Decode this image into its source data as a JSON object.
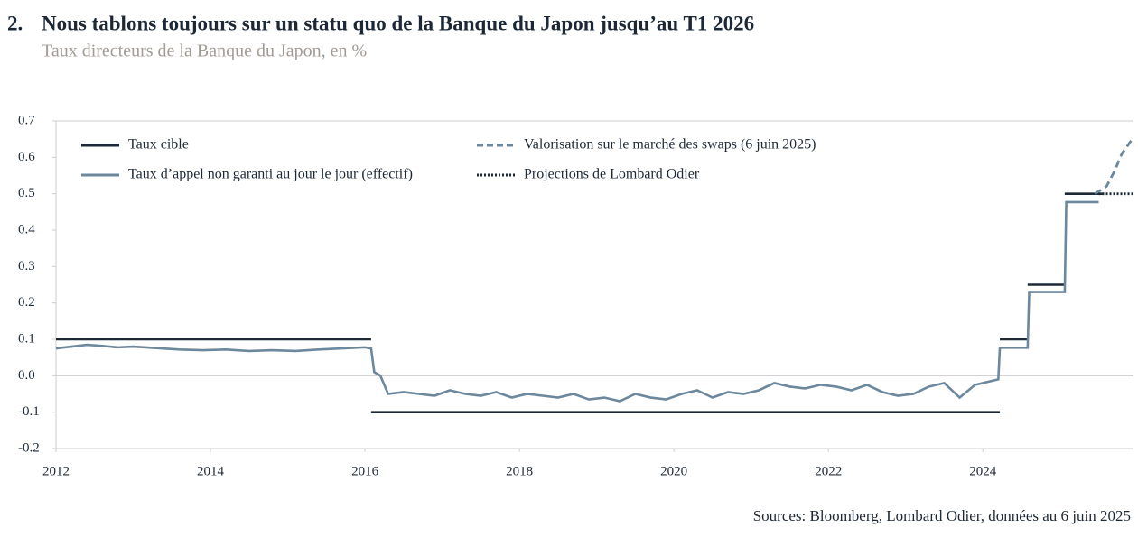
{
  "chart_data": {
    "type": "line",
    "number": "2.",
    "title": "Nous tablons toujours sur un statu quo de la Banque du Japon jusqu’au T1 2026",
    "subtitle": "Taux directeurs de la Banque du Japon, en %",
    "source": "Sources: Bloomberg, Lombard Odier, données au 6 juin 2025",
    "xlim": [
      2012,
      2025.95
    ],
    "xticks": [
      2012,
      2014,
      2016,
      2018,
      2020,
      2022,
      2024
    ],
    "ylim": [
      -0.2,
      0.7
    ],
    "yticks": [
      -0.2,
      -0.1,
      {
        "value": 0,
        "label": "0.0"
      },
      0.1,
      0.2,
      0.3,
      0.4,
      0.5,
      0.6,
      0.7
    ],
    "series": [
      {
        "name": "Taux cible",
        "color": "#1c2836",
        "style": "solid",
        "x": [
          2012,
          2016.08,
          2016.08,
          2016.08,
          2024.22,
          2024.22,
          2024.22,
          2024.58,
          2024.58,
          2024.58,
          2025.06,
          2025.06,
          2025.06,
          2025.55
        ],
        "values": [
          0.1,
          0.1,
          null,
          -0.1,
          -0.1,
          null,
          0.1,
          0.1,
          null,
          0.25,
          0.25,
          null,
          0.5,
          0.5
        ]
      },
      {
        "name": "Taux d’appel non garanti au jour le jour (effectif)",
        "color": "#6b889c",
        "style": "solid",
        "x": [
          2012,
          2012.2,
          2012.4,
          2012.6,
          2012.8,
          2013,
          2013.3,
          2013.6,
          2013.9,
          2014.2,
          2014.5,
          2014.8,
          2015.1,
          2015.4,
          2015.7,
          2016.0,
          2016.08,
          2016.12,
          2016.2,
          2016.3,
          2016.5,
          2016.7,
          2016.9,
          2017.1,
          2017.3,
          2017.5,
          2017.7,
          2017.9,
          2018.1,
          2018.3,
          2018.5,
          2018.7,
          2018.9,
          2019.1,
          2019.3,
          2019.5,
          2019.7,
          2019.9,
          2020.1,
          2020.3,
          2020.5,
          2020.7,
          2020.9,
          2021.1,
          2021.3,
          2021.5,
          2021.7,
          2021.9,
          2022.1,
          2022.3,
          2022.5,
          2022.7,
          2022.9,
          2023.1,
          2023.3,
          2023.5,
          2023.7,
          2023.9,
          2024.1,
          2024.2,
          2024.22,
          2024.58,
          2024.6,
          2025.06,
          2025.08,
          2025.5
        ],
        "values": [
          0.075,
          0.08,
          0.085,
          0.082,
          0.078,
          0.08,
          0.076,
          0.072,
          0.07,
          0.072,
          0.068,
          0.07,
          0.068,
          0.072,
          0.075,
          0.078,
          0.075,
          0.01,
          0,
          -0.05,
          -0.045,
          -0.05,
          -0.055,
          -0.04,
          -0.05,
          -0.055,
          -0.045,
          -0.06,
          -0.05,
          -0.055,
          -0.06,
          -0.05,
          -0.065,
          -0.06,
          -0.07,
          -0.05,
          -0.06,
          -0.065,
          -0.05,
          -0.04,
          -0.06,
          -0.045,
          -0.05,
          -0.04,
          -0.02,
          -0.03,
          -0.035,
          -0.025,
          -0.03,
          -0.04,
          -0.025,
          -0.045,
          -0.055,
          -0.05,
          -0.03,
          -0.02,
          -0.06,
          -0.025,
          -0.015,
          -0.01,
          0.077,
          0.077,
          0.23,
          0.23,
          0.477,
          0.477
        ]
      },
      {
        "name": "Valorisation sur le marché des swaps (6 juin 2025)",
        "color": "#6b889c",
        "style": "dashed",
        "x": [
          2025.45,
          2025.6,
          2025.7,
          2025.8,
          2025.95
        ],
        "values": [
          0.5,
          0.52,
          0.56,
          0.61,
          0.655
        ]
      },
      {
        "name": "Projections de Lombard Odier",
        "color": "#1c2836",
        "style": "dotted",
        "x": [
          2025.5,
          2025.95
        ],
        "values": [
          0.5,
          0.5
        ]
      }
    ]
  }
}
